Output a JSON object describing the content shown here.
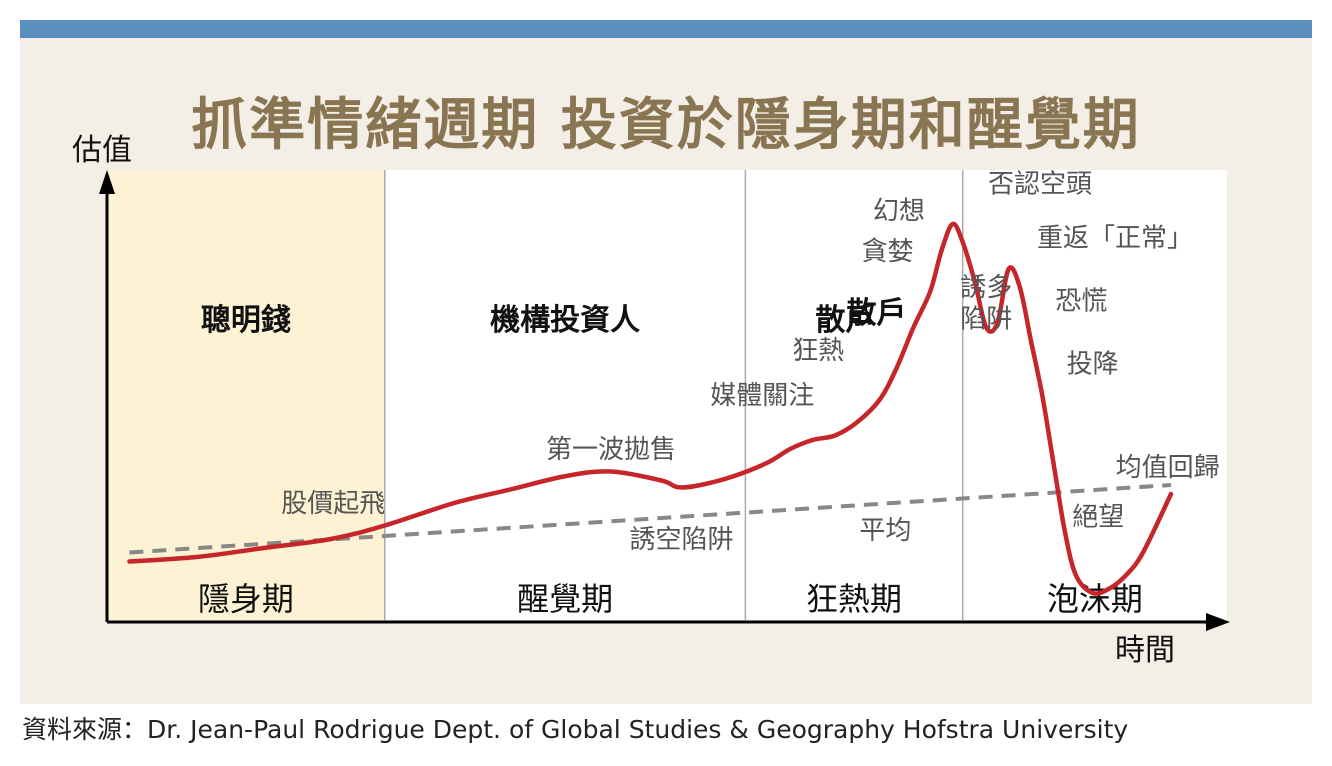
{
  "title": "抓準情緒週期 投資於隱身期和醒覺期",
  "source": "資料來源：Dr. Jean-Paul Rodrigue Dept. of Global Studies & Geography Hofstra University",
  "colors": {
    "bar": "#5b8fbd",
    "panel": "#f3efe7",
    "stealth_bg": "#fdf2d3",
    "curve": "#c6262a",
    "mean": "#888888",
    "title": "#8a7552"
  },
  "chart_data": {
    "type": "line",
    "ylabel": "估值",
    "xlabel": "時間",
    "phases": [
      {
        "name": "隱身期",
        "participant": "聰明錢",
        "start": 0,
        "end": 24.8
      },
      {
        "name": "醒覺期",
        "participant": "機構投資人",
        "start": 24.8,
        "end": 57.0
      },
      {
        "name": "狂熱期",
        "participant": "散戶",
        "start": 57.0,
        "end": 76.4
      },
      {
        "name": "泡沫期",
        "participant": "",
        "start": 76.4,
        "end": 100
      }
    ],
    "series": [
      {
        "name": "",
        "x": [
          2,
          8,
          14,
          20,
          24.8,
          31,
          36,
          41,
          45,
          49.5,
          51,
          53,
          56,
          59,
          61,
          63,
          65,
          67,
          69,
          70.5,
          72,
          73.5,
          74.5,
          75.5,
          76.4,
          77.5,
          78.5,
          79.5,
          80.5,
          81.5,
          82.5,
          83.5,
          84.5,
          85.5,
          86.5,
          88,
          89.5,
          91,
          92.5,
          95
        ],
        "y": [
          13,
          14,
          16,
          18,
          21,
          26,
          29,
          32,
          33,
          31,
          29.5,
          30,
          32,
          35,
          38,
          40,
          41,
          44,
          49,
          56,
          65,
          73,
          82,
          88,
          84,
          75,
          65,
          66,
          78,
          74,
          62,
          50,
          35,
          20,
          10,
          6,
          7,
          10,
          15,
          28
        ]
      },
      {
        "name": "平均",
        "x": [
          2,
          95
        ],
        "y": [
          15,
          30
        ]
      }
    ],
    "annotations": [
      {
        "text": "股價起飛",
        "x": 20.2,
        "y": 24
      },
      {
        "text": "第一波拋售",
        "x": 45,
        "y": 36
      },
      {
        "text": "誘空陷阱",
        "x": 51.3,
        "y": 16
      },
      {
        "text": "媒體關注",
        "x": 58.5,
        "y": 48
      },
      {
        "text": "狂熱",
        "x": 63.5,
        "y": 58
      },
      {
        "text": "平均",
        "x": 69.5,
        "y": 18
      },
      {
        "text": "貪婪",
        "x": 69.7,
        "y": 80
      },
      {
        "text": "幻想",
        "x": 70.7,
        "y": 89
      },
      {
        "text": "散戶",
        "x": 68.7,
        "y": 66
      },
      {
        "text": "否認空頭",
        "x": 83.3,
        "y": 95
      },
      {
        "text": "誘多",
        "x": 78.5,
        "y": 72
      },
      {
        "text": "陷阱",
        "x": 78.5,
        "y": 65
      },
      {
        "text": "重返「正常」",
        "x": 90,
        "y": 83
      },
      {
        "text": "恐慌",
        "x": 87,
        "y": 69
      },
      {
        "text": "投降",
        "x": 88,
        "y": 55
      },
      {
        "text": "均值回歸",
        "x": 94.7,
        "y": 32
      },
      {
        "text": "絕望",
        "x": 88.5,
        "y": 21
      }
    ]
  }
}
